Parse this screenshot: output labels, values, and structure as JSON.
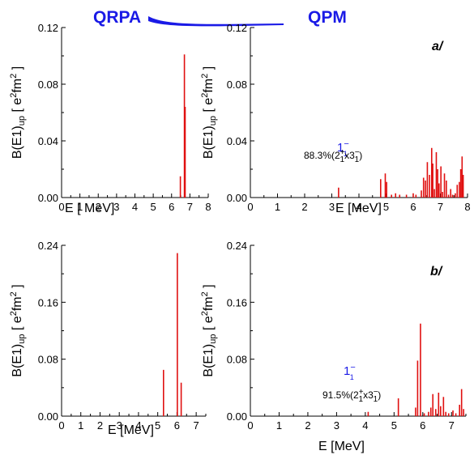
{
  "header": {
    "left": "QRPA",
    "right": "QPM"
  },
  "colors": {
    "bar": "#e01010",
    "header": "#1a1ae6",
    "axis": "#000000"
  },
  "chart_data": [
    {
      "id": "qrpa-a",
      "type": "bar",
      "title": "",
      "xlabel": "E [ MeV]",
      "ylabel": "B(E1)up [ e2fm2 ]",
      "xlim": [
        0,
        8
      ],
      "ylim": [
        0,
        0.12
      ],
      "xticks": [
        "0",
        "1",
        "2",
        "3",
        "4",
        "5",
        "6",
        "7",
        "8"
      ],
      "yticks": [
        "0.00",
        "0.04",
        "0.08",
        "0.12"
      ],
      "x": [
        6.48,
        6.7,
        6.74
      ],
      "values": [
        0.015,
        0.101,
        0.064
      ]
    },
    {
      "id": "qpm-a",
      "type": "bar",
      "title": "",
      "panel_label": "a/",
      "xlabel": "E [MeV]",
      "ylabel": "B(E1)up [ e2fm2 ]",
      "xlim": [
        0,
        8
      ],
      "ylim": [
        0,
        0.12
      ],
      "xticks": [
        "0",
        "1",
        "2",
        "3",
        "4",
        "5",
        "6",
        "7",
        "8"
      ],
      "yticks": [
        "0.00",
        "0.04",
        "0.08",
        "0.12"
      ],
      "annotation": {
        "state": "1",
        "state_sup": "−",
        "state_sub": "1",
        "text": "88.3%(2",
        "t1sup": "+",
        "t1sub": "1",
        "mid": "x3",
        "t2sup": "−",
        "t2sub": "1",
        "close": ")"
      },
      "x": [
        3.25,
        4.8,
        4.97,
        5.02,
        5.2,
        5.35,
        5.5,
        5.75,
        6.0,
        6.1,
        6.3,
        6.38,
        6.45,
        6.52,
        6.6,
        6.68,
        6.72,
        6.78,
        6.85,
        6.9,
        6.95,
        7.02,
        7.08,
        7.15,
        7.22,
        7.3,
        7.38,
        7.45,
        7.55,
        7.62,
        7.7,
        7.75,
        7.8,
        7.84
      ],
      "values": [
        0.007,
        0.013,
        0.017,
        0.011,
        0.002,
        0.003,
        0.002,
        0.002,
        0.003,
        0.002,
        0.005,
        0.014,
        0.012,
        0.025,
        0.016,
        0.035,
        0.024,
        0.006,
        0.032,
        0.02,
        0.01,
        0.022,
        0.004,
        0.017,
        0.012,
        0.002,
        0.006,
        0.002,
        0.003,
        0.009,
        0.011,
        0.02,
        0.029,
        0.016
      ]
    },
    {
      "id": "qrpa-b",
      "type": "bar",
      "title": "",
      "xlabel": "E [MeV]",
      "ylabel": "B(E1)up [ e2fm2 ]",
      "xlim": [
        0,
        7.5
      ],
      "ylim": [
        0,
        0.24
      ],
      "xticks": [
        "0",
        "1",
        "2",
        "3",
        "4",
        "5",
        "6",
        "7"
      ],
      "yticks": [
        "0.00",
        "0.08",
        "0.16",
        "0.24"
      ],
      "x": [
        5.3,
        6.02,
        6.22
      ],
      "values": [
        0.065,
        0.229,
        0.047
      ]
    },
    {
      "id": "qpm-b",
      "type": "bar",
      "title": "",
      "panel_label": "b/",
      "xlabel": "E [MeV]",
      "ylabel": "B(E1)up [ e2fm2 ]",
      "xlim": [
        0,
        7.5
      ],
      "ylim": [
        0,
        0.24
      ],
      "xticks": [
        "0",
        "1",
        "2",
        "3",
        "4",
        "5",
        "6",
        "7"
      ],
      "yticks": [
        "0.00",
        "0.08",
        "0.16",
        "0.24"
      ],
      "annotation": {
        "state": "1",
        "state_sup": "−",
        "state_sub": "1",
        "text": "91.5%(2",
        "t1sup": "+",
        "t1sub": "1",
        "mid": "x3",
        "t2sup": "−",
        "t2sub": "1",
        "close": ")"
      },
      "x": [
        4.1,
        5.15,
        5.75,
        5.82,
        5.92,
        6.05,
        6.2,
        6.28,
        6.35,
        6.45,
        6.55,
        6.62,
        6.72,
        6.8,
        6.9,
        7.05,
        7.15,
        7.28,
        7.35,
        7.42
      ],
      "values": [
        0.006,
        0.025,
        0.012,
        0.078,
        0.13,
        0.004,
        0.006,
        0.012,
        0.031,
        0.01,
        0.033,
        0.014,
        0.027,
        0.006,
        0.004,
        0.008,
        0.004,
        0.016,
        0.038,
        0.01
      ]
    }
  ]
}
